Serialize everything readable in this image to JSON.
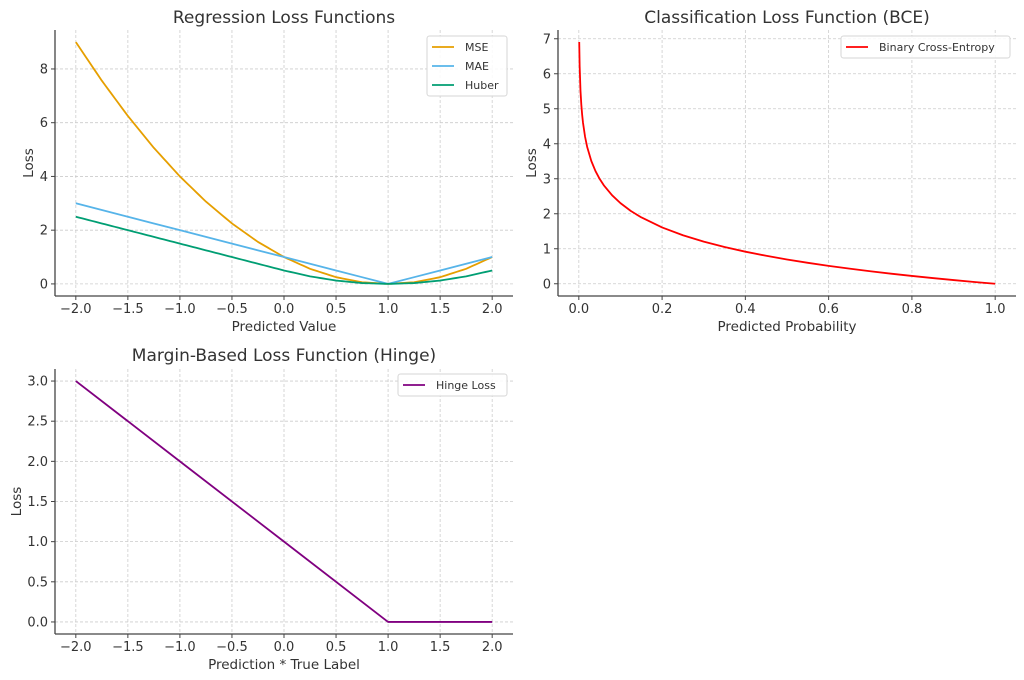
{
  "chart_data": [
    {
      "id": "regression",
      "type": "line",
      "title": "Regression Loss Functions",
      "xlabel": "Predicted Value",
      "ylabel": "Loss",
      "xlim": [
        -2.2,
        2.2
      ],
      "ylim": [
        -0.45,
        9.45
      ],
      "xticks": [
        -2.0,
        -1.5,
        -1.0,
        -0.5,
        0.0,
        0.5,
        1.0,
        1.5,
        2.0
      ],
      "xtick_labels": [
        "−2.0",
        "−1.5",
        "−1.0",
        "−0.5",
        "0.0",
        "0.5",
        "1.0",
        "1.5",
        "2.0"
      ],
      "yticks": [
        0,
        2,
        4,
        6,
        8
      ],
      "ytick_labels": [
        "0",
        "2",
        "4",
        "6",
        "8"
      ],
      "grid": true,
      "legend_position": "top-right",
      "x": [
        -2.0,
        -1.75,
        -1.5,
        -1.25,
        -1.0,
        -0.75,
        -0.5,
        -0.25,
        0.0,
        0.25,
        0.5,
        0.75,
        1.0,
        1.25,
        1.5,
        1.75,
        2.0
      ],
      "series": [
        {
          "name": "MSE",
          "color": "#E69F00",
          "values": [
            9.0,
            7.5625,
            6.25,
            5.0625,
            4.0,
            3.0625,
            2.25,
            1.5625,
            1.0,
            0.5625,
            0.25,
            0.0625,
            0.0,
            0.0625,
            0.25,
            0.5625,
            1.0
          ]
        },
        {
          "name": "MAE",
          "color": "#56B4E9",
          "values": [
            3.0,
            2.75,
            2.5,
            2.25,
            2.0,
            1.75,
            1.5,
            1.25,
            1.0,
            0.75,
            0.5,
            0.25,
            0.0,
            0.25,
            0.5,
            0.75,
            1.0
          ]
        },
        {
          "name": "Huber",
          "color": "#009E73",
          "values": [
            2.5,
            2.25,
            2.0,
            1.75,
            1.5,
            1.25,
            1.0,
            0.75,
            0.5,
            0.28125,
            0.125,
            0.03125,
            0.0,
            0.03125,
            0.125,
            0.28125,
            0.5
          ]
        }
      ]
    },
    {
      "id": "classification",
      "type": "line",
      "title": "Classification Loss Function (BCE)",
      "xlabel": "Predicted Probability",
      "ylabel": "Loss",
      "xlim": [
        -0.05,
        1.05
      ],
      "ylim": [
        -0.35,
        7.25
      ],
      "xticks": [
        0.0,
        0.2,
        0.4,
        0.6,
        0.8,
        1.0
      ],
      "xtick_labels": [
        "0.0",
        "0.2",
        "0.4",
        "0.6",
        "0.8",
        "1.0"
      ],
      "yticks": [
        0,
        1,
        2,
        3,
        4,
        5,
        6,
        7
      ],
      "ytick_labels": [
        "0",
        "1",
        "2",
        "3",
        "4",
        "5",
        "6",
        "7"
      ],
      "grid": true,
      "legend_position": "top-right",
      "x": [
        0.001,
        0.002,
        0.004,
        0.006,
        0.008,
        0.01,
        0.015,
        0.02,
        0.03,
        0.04,
        0.05,
        0.06,
        0.08,
        0.1,
        0.125,
        0.15,
        0.2,
        0.25,
        0.3,
        0.35,
        0.4,
        0.45,
        0.5,
        0.55,
        0.6,
        0.65,
        0.7,
        0.75,
        0.8,
        0.85,
        0.9,
        0.95,
        1.0
      ],
      "series": [
        {
          "name": "Binary Cross-Entropy",
          "color": "#FF0000",
          "values": [
            6.908,
            6.215,
            5.521,
            5.116,
            4.828,
            4.605,
            4.2,
            3.912,
            3.507,
            3.219,
            2.996,
            2.813,
            2.526,
            2.303,
            2.079,
            1.897,
            1.609,
            1.386,
            1.204,
            1.05,
            0.916,
            0.799,
            0.693,
            0.598,
            0.511,
            0.431,
            0.357,
            0.288,
            0.223,
            0.163,
            0.105,
            0.051,
            0.0
          ]
        }
      ]
    },
    {
      "id": "hinge",
      "type": "line",
      "title": "Margin-Based Loss Function (Hinge)",
      "xlabel": "Prediction * True Label",
      "ylabel": "Loss",
      "xlim": [
        -2.2,
        2.2
      ],
      "ylim": [
        -0.15,
        3.15
      ],
      "xticks": [
        -2.0,
        -1.5,
        -1.0,
        -0.5,
        0.0,
        0.5,
        1.0,
        1.5,
        2.0
      ],
      "xtick_labels": [
        "−2.0",
        "−1.5",
        "−1.0",
        "−0.5",
        "0.0",
        "0.5",
        "1.0",
        "1.5",
        "2.0"
      ],
      "yticks": [
        0.0,
        0.5,
        1.0,
        1.5,
        2.0,
        2.5,
        3.0
      ],
      "ytick_labels": [
        "0.0",
        "0.5",
        "1.0",
        "1.5",
        "2.0",
        "2.5",
        "3.0"
      ],
      "grid": true,
      "legend_position": "top-right",
      "x": [
        -2.0,
        -1.0,
        0.0,
        1.0,
        1.5,
        2.0
      ],
      "series": [
        {
          "name": "Hinge Loss",
          "color": "#800080",
          "values": [
            3.0,
            2.0,
            1.0,
            0.0,
            0.0,
            0.0
          ]
        }
      ]
    }
  ]
}
